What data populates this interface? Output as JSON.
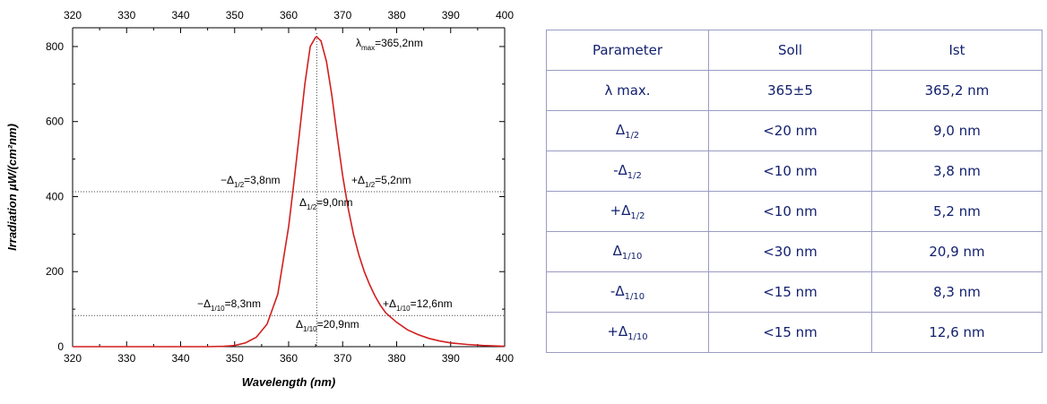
{
  "colors": {
    "curve": "#d11f1f",
    "table_text": "#12206e",
    "table_border": "#9b9bc4",
    "axes": "#000000"
  },
  "chart_data": {
    "type": "line",
    "xlabel": "Wavelength (nm)",
    "ylabel": "Irradiation µW/(cm²nm)",
    "xlim": [
      320,
      400
    ],
    "ylim": [
      0,
      850
    ],
    "xticks": [
      "320",
      "330",
      "340",
      "350",
      "360",
      "370",
      "380",
      "390",
      "400"
    ],
    "yticks": [
      "0",
      "200",
      "400",
      "600",
      "800"
    ],
    "grid": false,
    "series": [
      {
        "x": [
          320,
          340,
          345,
          348,
          350,
          352,
          354,
          356,
          358,
          360,
          361,
          362,
          363,
          364,
          365,
          365.2,
          366,
          367,
          368,
          369,
          370,
          371,
          372,
          373,
          374,
          375,
          376,
          377,
          378,
          380,
          382,
          384,
          386,
          388,
          390,
          393,
          396,
          400
        ],
        "y": [
          0,
          0,
          0,
          1,
          3,
          10,
          25,
          60,
          140,
          320,
          440,
          570,
          700,
          800,
          825,
          826,
          815,
          760,
          670,
          560,
          455,
          370,
          300,
          245,
          200,
          165,
          135,
          110,
          90,
          65,
          45,
          32,
          22,
          15,
          10,
          6,
          3,
          1
        ]
      }
    ],
    "guides": {
      "peak_x": 365.2,
      "half_y": 413,
      "tenth_y": 83
    },
    "annotations": [
      {
        "id": "lmax",
        "pre": "λ",
        "sub": "max",
        "post": "=365,2nm"
      },
      {
        "id": "half-left",
        "pre": "−Δ",
        "sub": "1/2",
        "post": "=3,8nm"
      },
      {
        "id": "half-right",
        "pre": "+Δ",
        "sub": "1/2",
        "post": "=5,2nm"
      },
      {
        "id": "half-width",
        "pre": "Δ",
        "sub": "1/2",
        "post": "=9,0nm"
      },
      {
        "id": "tenth-left",
        "pre": "−Δ",
        "sub": "1/10",
        "post": "=8,3nm"
      },
      {
        "id": "tenth-right",
        "pre": "+Δ",
        "sub": "1/10",
        "post": "=12,6nm"
      },
      {
        "id": "tenth-width",
        "pre": "Δ",
        "sub": "1/10",
        "post": "=20,9nm"
      }
    ]
  },
  "table": {
    "headers": [
      "Parameter",
      "Soll",
      "Ist"
    ],
    "rows": [
      {
        "pre": "λ max.",
        "sub": "",
        "soll": "365±5",
        "ist": "365,2 nm"
      },
      {
        "pre": "Δ",
        "sub": "1/2",
        "soll": "<20 nm",
        "ist": "9,0 nm"
      },
      {
        "pre": "-Δ",
        "sub": "1/2",
        "soll": "<10 nm",
        "ist": "3,8 nm"
      },
      {
        "pre": "+Δ",
        "sub": "1/2",
        "soll": "<10 nm",
        "ist": "5,2 nm"
      },
      {
        "pre": "Δ",
        "sub": "1/10",
        "soll": "<30 nm",
        "ist": "20,9 nm"
      },
      {
        "pre": "-Δ",
        "sub": "1/10",
        "soll": "<15 nm",
        "ist": "8,3 nm"
      },
      {
        "pre": "+Δ",
        "sub": "1/10",
        "soll": "<15 nm",
        "ist": "12,6 nm"
      }
    ]
  }
}
